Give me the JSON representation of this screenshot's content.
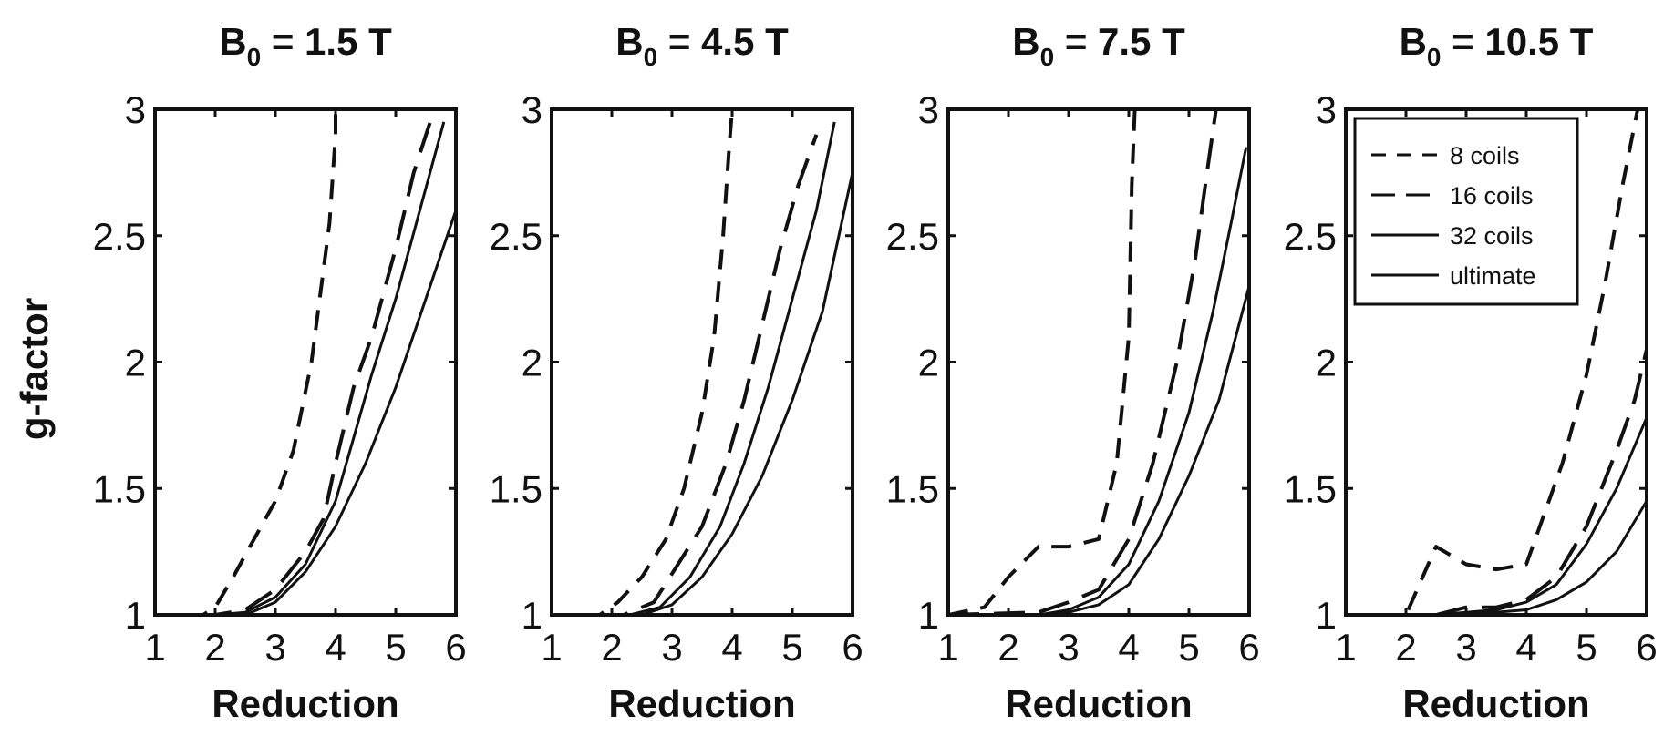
{
  "figure": {
    "ylabel": "g-factor",
    "xlabel": "Reduction"
  },
  "legend": {
    "entries": [
      {
        "label": "8 coils",
        "style": "dashed"
      },
      {
        "label": "16 coils",
        "style": "longdash"
      },
      {
        "label": "32 coils",
        "style": "solid"
      },
      {
        "label": "ultimate",
        "style": "solid"
      }
    ]
  },
  "colors": {
    "line": "#111111",
    "axes": "#111111",
    "background": "#ffffff"
  },
  "chart_data": [
    {
      "type": "line",
      "title_main": "B",
      "title_sub": "0",
      "title_rest": " = 1.5 T",
      "xlabel": "Reduction",
      "ylabel": "g-factor",
      "xlim": [
        1,
        6
      ],
      "ylim": [
        1,
        3
      ],
      "xticks": [
        "1",
        "2",
        "3",
        "4",
        "5",
        "6"
      ],
      "yticks": [
        "1",
        "1.5",
        "2",
        "2.5",
        "3"
      ],
      "legend": false,
      "series": [
        {
          "name": "8 coils",
          "style": "dashed",
          "x": [
            1,
            1.8,
            2,
            2.3,
            2.6,
            3,
            3.3,
            3.6,
            3.9,
            4,
            4
          ],
          "y": [
            1,
            1,
            1.03,
            1.15,
            1.28,
            1.45,
            1.65,
            2.0,
            2.55,
            2.9,
            3
          ]
        },
        {
          "name": "16 coils",
          "style": "longdash",
          "x": [
            1,
            2,
            2.5,
            3,
            3.5,
            3.8,
            4,
            4.3,
            4.6,
            5,
            5.3,
            5.6
          ],
          "y": [
            1,
            1,
            1.02,
            1.1,
            1.25,
            1.38,
            1.6,
            1.9,
            2.1,
            2.45,
            2.75,
            2.97
          ]
        },
        {
          "name": "32 coils",
          "style": "solid",
          "x": [
            1,
            2,
            2.5,
            3,
            3.5,
            4,
            4.3,
            4.6,
            5,
            5.4,
            5.8
          ],
          "y": [
            1,
            1,
            1.01,
            1.07,
            1.2,
            1.45,
            1.7,
            1.95,
            2.25,
            2.6,
            2.95
          ]
        },
        {
          "name": "ultimate",
          "style": "solid",
          "x": [
            1,
            2.5,
            3,
            3.5,
            4,
            4.5,
            5,
            5.5,
            6
          ],
          "y": [
            1,
            1,
            1.05,
            1.17,
            1.35,
            1.6,
            1.9,
            2.25,
            2.6
          ]
        }
      ]
    },
    {
      "type": "line",
      "title_main": "B",
      "title_sub": "0",
      "title_rest": " = 4.5 T",
      "xlabel": "Reduction",
      "ylabel": "",
      "xlim": [
        1,
        6
      ],
      "ylim": [
        1,
        3
      ],
      "xticks": [
        "1",
        "2",
        "3",
        "4",
        "5",
        "6"
      ],
      "yticks": [
        "1",
        "1.5",
        "2",
        "2.5",
        "3"
      ],
      "legend": false,
      "series": [
        {
          "name": "8 coils",
          "style": "dashed",
          "x": [
            1,
            1.8,
            2.1,
            2.5,
            2.9,
            3.2,
            3.5,
            3.7,
            3.85,
            3.95,
            4
          ],
          "y": [
            1,
            1,
            1.05,
            1.15,
            1.3,
            1.5,
            1.8,
            2.1,
            2.5,
            2.85,
            3
          ]
        },
        {
          "name": "16 coils",
          "style": "longdash",
          "x": [
            1,
            2.2,
            2.7,
            3.1,
            3.5,
            3.9,
            4.2,
            4.5,
            4.8,
            5.1,
            5.4
          ],
          "y": [
            1,
            1,
            1.05,
            1.2,
            1.35,
            1.6,
            1.85,
            2.15,
            2.45,
            2.7,
            2.9
          ]
        },
        {
          "name": "32 coils",
          "style": "solid",
          "x": [
            1,
            2.3,
            2.8,
            3.3,
            3.8,
            4.2,
            4.6,
            5,
            5.4,
            5.7
          ],
          "y": [
            1,
            1,
            1.03,
            1.15,
            1.35,
            1.6,
            1.9,
            2.25,
            2.6,
            2.95
          ]
        },
        {
          "name": "ultimate",
          "style": "solid",
          "x": [
            1,
            2.5,
            3,
            3.5,
            4,
            4.5,
            5,
            5.5,
            6
          ],
          "y": [
            1,
            1,
            1.04,
            1.15,
            1.32,
            1.55,
            1.85,
            2.2,
            2.75
          ]
        }
      ]
    },
    {
      "type": "line",
      "title_main": "B",
      "title_sub": "0",
      "title_rest": " = 7.5 T",
      "xlabel": "Reduction",
      "ylabel": "",
      "xlim": [
        1,
        6
      ],
      "ylim": [
        1,
        3
      ],
      "xticks": [
        "1",
        "2",
        "3",
        "4",
        "5",
        "6"
      ],
      "yticks": [
        "1",
        "1.5",
        "2",
        "2.5",
        "3"
      ],
      "legend": false,
      "series": [
        {
          "name": "8 coils",
          "style": "dashed",
          "x": [
            1,
            1.6,
            2,
            2.5,
            3,
            3.5,
            3.8,
            4,
            4.05,
            4.1
          ],
          "y": [
            1,
            1.03,
            1.15,
            1.27,
            1.27,
            1.3,
            1.6,
            2.1,
            2.7,
            3
          ]
        },
        {
          "name": "16 coils",
          "style": "longdash",
          "x": [
            1,
            2.5,
            3,
            3.5,
            4,
            4.4,
            4.8,
            5.1,
            5.3,
            5.45
          ],
          "y": [
            1,
            1.01,
            1.05,
            1.1,
            1.3,
            1.6,
            2.0,
            2.4,
            2.75,
            3
          ]
        },
        {
          "name": "32 coils",
          "style": "solid",
          "x": [
            1,
            2.5,
            3,
            3.5,
            4,
            4.5,
            5,
            5.4,
            5.7,
            5.95
          ],
          "y": [
            1,
            1,
            1.02,
            1.07,
            1.2,
            1.45,
            1.8,
            2.2,
            2.55,
            2.85
          ]
        },
        {
          "name": "ultimate",
          "style": "solid",
          "x": [
            1,
            2.5,
            3,
            3.5,
            4,
            4.5,
            5,
            5.5,
            6
          ],
          "y": [
            1,
            1,
            1.01,
            1.04,
            1.12,
            1.3,
            1.55,
            1.85,
            2.3
          ]
        }
      ]
    },
    {
      "type": "line",
      "title_main": "B",
      "title_sub": "0",
      "title_rest": " = 10.5 T",
      "xlabel": "Reduction",
      "ylabel": "",
      "xlim": [
        1,
        6
      ],
      "ylim": [
        1,
        3
      ],
      "xticks": [
        "1",
        "2",
        "3",
        "4",
        "5",
        "6"
      ],
      "yticks": [
        "1",
        "1.5",
        "2",
        "2.5",
        "3"
      ],
      "legend": true,
      "legend_position": "top-right",
      "series": [
        {
          "name": "8 coils",
          "style": "dashed",
          "x": [
            1,
            2,
            2.5,
            3,
            3.5,
            4,
            4.3,
            4.6,
            5,
            5.3,
            5.6,
            5.85
          ],
          "y": [
            1,
            1,
            1.27,
            1.2,
            1.18,
            1.2,
            1.4,
            1.6,
            1.95,
            2.3,
            2.7,
            3
          ]
        },
        {
          "name": "16 coils",
          "style": "longdash",
          "x": [
            1,
            2.5,
            3,
            3.5,
            4,
            4.5,
            5,
            5.5,
            5.8,
            6
          ],
          "y": [
            1,
            1,
            1.03,
            1.03,
            1.06,
            1.15,
            1.35,
            1.65,
            1.85,
            2.05
          ]
        },
        {
          "name": "32 coils",
          "style": "solid",
          "x": [
            1,
            2.5,
            3,
            3.5,
            4,
            4.5,
            5,
            5.5,
            6
          ],
          "y": [
            1,
            1,
            1.01,
            1.02,
            1.05,
            1.12,
            1.28,
            1.5,
            1.78
          ]
        },
        {
          "name": "ultimate",
          "style": "solid",
          "x": [
            1,
            3,
            3.5,
            4,
            4.5,
            5,
            5.5,
            6
          ],
          "y": [
            1,
            1,
            1.01,
            1.02,
            1.06,
            1.13,
            1.25,
            1.45
          ]
        }
      ]
    }
  ]
}
